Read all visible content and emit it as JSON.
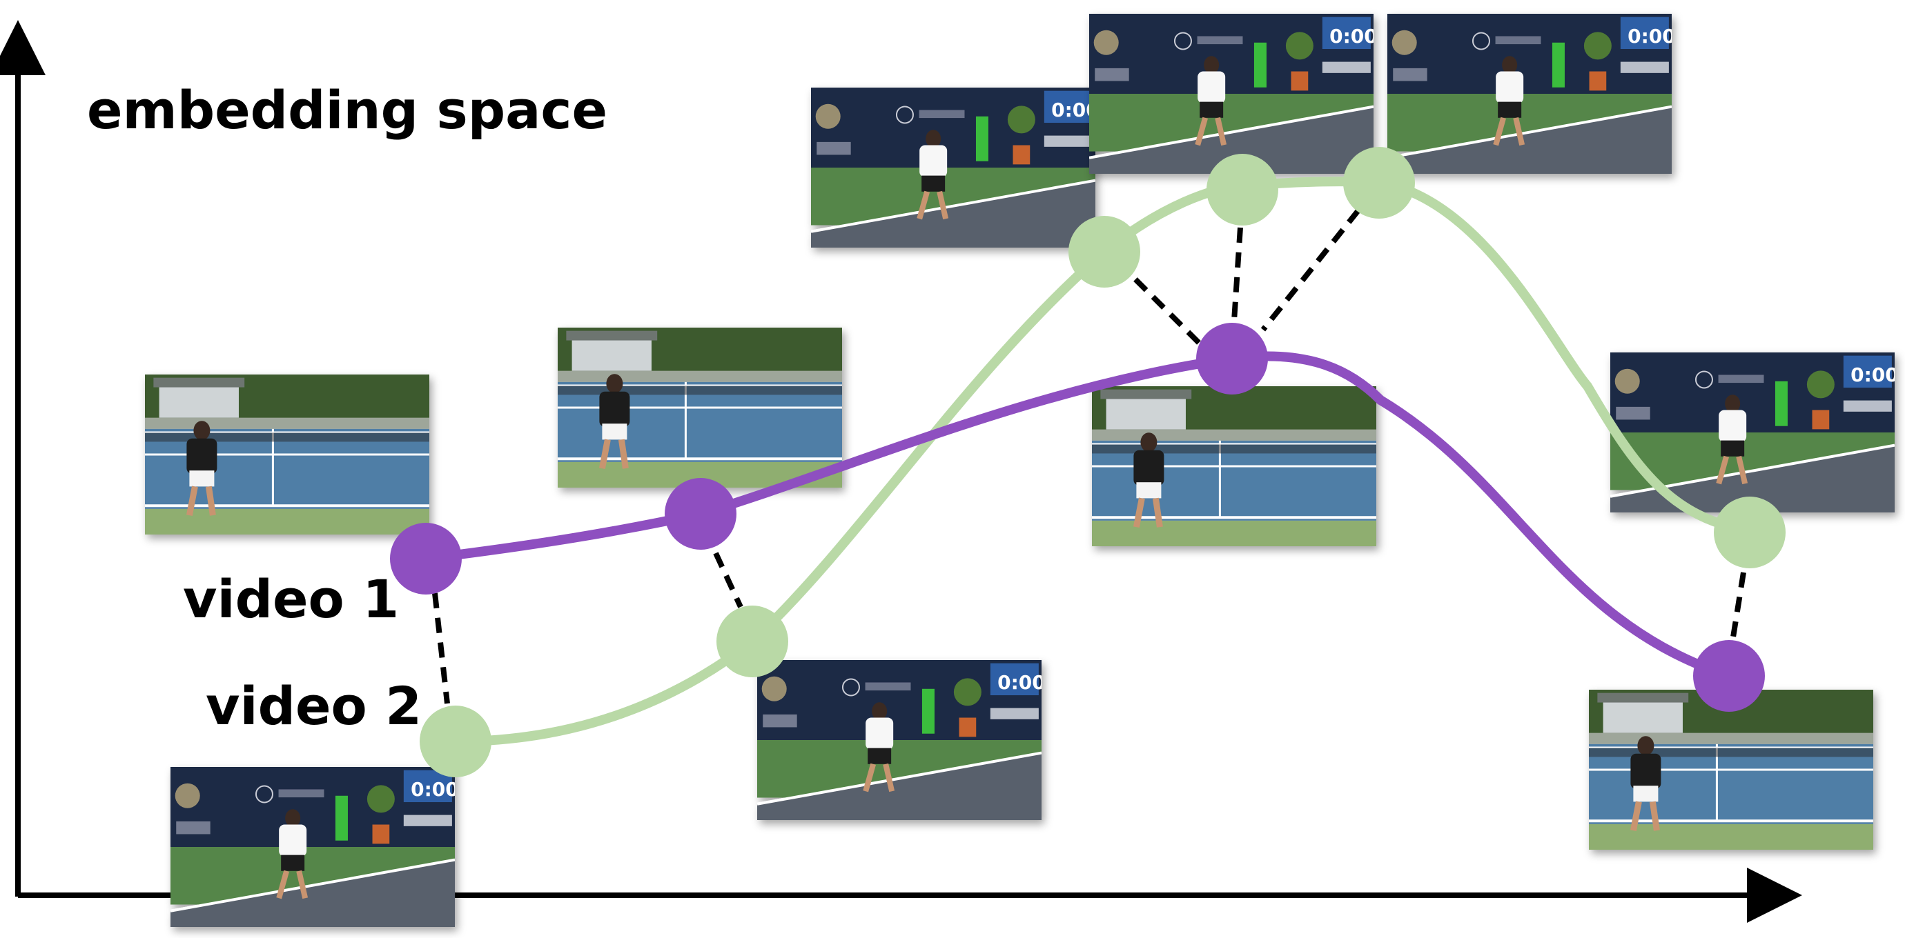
{
  "title": "embedding space",
  "videos": [
    {
      "label": "video 1",
      "color": "#8e4fc0"
    },
    {
      "label": "video 2",
      "color": "#b9d9a6"
    }
  ],
  "colors": {
    "court_blue": "#4f7ea6",
    "court_green_outdoor": "#8fae70",
    "court_green_indoor": "#54864a",
    "court_grey": "#59606c",
    "wall_navy": "#1f2a45",
    "sky": "#d9e1ea",
    "trees": "#3c5a2e",
    "scoreboard": "#2d5ea6"
  },
  "scoreboard_text": "0:00"
}
